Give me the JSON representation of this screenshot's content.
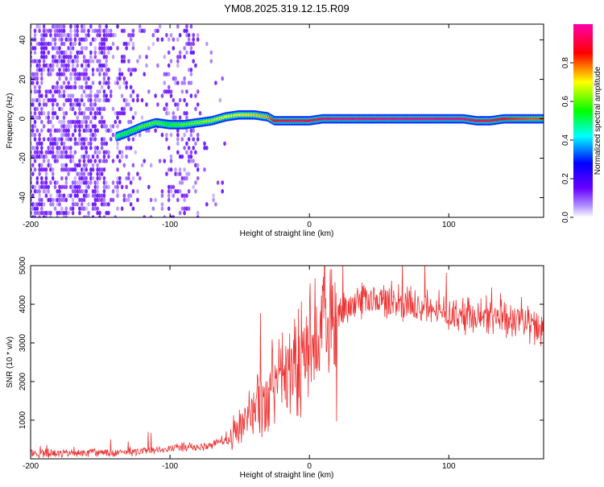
{
  "figure_title": "YM08.2025.319.12.15.R09",
  "chart_data": [
    {
      "type": "heatmap",
      "title": "YM08.2025.319.12.15.R09",
      "xlabel": "Height of straight line (km)",
      "ylabel": "Frequency (Hz)",
      "xlim": [
        -200,
        168
      ],
      "ylim": [
        -50,
        48
      ],
      "x_ticks": [
        -200,
        -100,
        0,
        100
      ],
      "x_tick_labels": [
        "-200",
        "-100",
        "0",
        "100"
      ],
      "y_ticks": [
        -40,
        -20,
        0,
        20,
        40
      ],
      "y_tick_labels": [
        "-40",
        "-20",
        "0",
        "20",
        "40"
      ],
      "colorbar": {
        "label": "Normalized spectral amplitude",
        "range": [
          0,
          1
        ],
        "ticks": [
          0,
          0.2,
          0.4,
          0.6,
          0.8
        ],
        "tick_labels": [
          "0.0",
          "0.2",
          "0.4",
          "0.6",
          "0.8"
        ],
        "colors": [
          "#ffffff",
          "#8a2be2",
          "#0000ff",
          "#00ffff",
          "#00ff00",
          "#ffff00",
          "#ff0000",
          "#ff00ff"
        ]
      },
      "ridge": {
        "description": "spectral peak frequency vs height",
        "x": [
          -138,
          -130,
          -120,
          -110,
          -100,
          -90,
          -80,
          -70,
          -60,
          -50,
          -40,
          -30,
          -25,
          -20,
          -10,
          0,
          10,
          20,
          40,
          60,
          80,
          100,
          110,
          120,
          130,
          140,
          150,
          160,
          168
        ],
        "freq": [
          -9,
          -7,
          -4,
          -2,
          -3,
          -3,
          -2,
          -1,
          1,
          2,
          2,
          1,
          -1,
          -1,
          -1,
          -1,
          0,
          0,
          0,
          0,
          0,
          0,
          0,
          -1,
          -1,
          0,
          0,
          0,
          0
        ],
        "amplitude": [
          0.5,
          0.55,
          0.6,
          0.6,
          0.55,
          0.6,
          0.62,
          0.65,
          0.7,
          0.7,
          0.72,
          0.75,
          0.85,
          0.9,
          0.9,
          0.9,
          0.92,
          0.95,
          0.95,
          0.95,
          0.95,
          0.95,
          0.95,
          0.9,
          0.9,
          0.85,
          0.82,
          0.8,
          0.8
        ]
      },
      "noise_region": {
        "x_range": [
          -200,
          -80
        ],
        "sparse_until": -60,
        "amplitude_range": [
          0,
          0.3
        ]
      }
    },
    {
      "type": "line",
      "xlabel": "Height of straight line (km)",
      "ylabel": "SNR (10 * v/v)",
      "xlim": [
        -200,
        168
      ],
      "ylim": [
        0,
        5000
      ],
      "x_ticks": [
        -200,
        -100,
        0,
        100
      ],
      "x_tick_labels": [
        "-200",
        "-100",
        "0",
        "100"
      ],
      "y_ticks": [
        1000,
        2000,
        3000,
        4000,
        5000
      ],
      "y_tick_labels": [
        "1000",
        "2000",
        "3000",
        "4000",
        "5000"
      ],
      "color": "#ee3333",
      "series": [
        {
          "name": "SNR",
          "x": [
            -200,
            -180,
            -160,
            -140,
            -120,
            -100,
            -90,
            -80,
            -70,
            -65,
            -60,
            -55,
            -50,
            -45,
            -40,
            -35,
            -30,
            -25,
            -20,
            -15,
            -10,
            -5,
            0,
            5,
            10,
            15,
            20,
            25,
            30,
            40,
            50,
            60,
            70,
            80,
            90,
            100,
            110,
            120,
            130,
            140,
            150,
            160,
            168
          ],
          "values": [
            150,
            150,
            150,
            160,
            200,
            280,
            300,
            280,
            350,
            500,
            450,
            600,
            900,
            1100,
            1300,
            1500,
            1700,
            1900,
            2100,
            2300,
            2500,
            2700,
            2900,
            3100,
            3300,
            3500,
            3700,
            3900,
            4000,
            4050,
            4100,
            4100,
            4050,
            4000,
            3900,
            3800,
            3750,
            3700,
            3650,
            3600,
            3550,
            3400,
            3300
          ]
        }
      ]
    }
  ]
}
